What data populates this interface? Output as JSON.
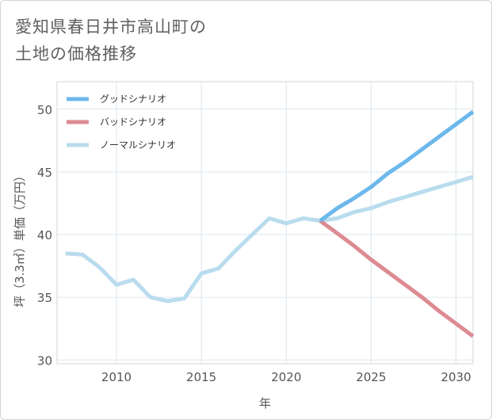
{
  "title_line1": "愛知県春日井市高山町の",
  "title_line2": "土地の価格推移",
  "chart_data": {
    "type": "line",
    "xlabel": "年",
    "ylabel": "坪（3.3㎡）単価（万円）",
    "xlim": [
      2006.5,
      2031
    ],
    "ylim": [
      29.7,
      52.2
    ],
    "xticks": [
      "2010",
      "2015",
      "2020",
      "2025",
      "2030"
    ],
    "yticks": [
      "30",
      "35",
      "40",
      "45",
      "50"
    ],
    "grid": true,
    "legend_position": "top-left",
    "series": [
      {
        "name": "グッドシナリオ",
        "color": "#6cb8ec",
        "x": [
          2022,
          2023,
          2024,
          2025,
          2026,
          2027,
          2028,
          2029,
          2030,
          2031
        ],
        "y": [
          41.1,
          42.1,
          42.9,
          43.8,
          44.9,
          45.8,
          46.8,
          47.8,
          48.8,
          49.8
        ]
      },
      {
        "name": "バッドシナリオ",
        "color": "#dd8a92",
        "x": [
          2022,
          2023,
          2024,
          2025,
          2026,
          2027,
          2028,
          2029,
          2030,
          2031
        ],
        "y": [
          41.1,
          40.1,
          39.1,
          38.0,
          37.0,
          36.0,
          35.0,
          33.9,
          32.9,
          31.9
        ]
      },
      {
        "name": "ノーマルシナリオ",
        "color": "#b9dcee",
        "x": [
          2007,
          2008,
          2009,
          2010,
          2011,
          2012,
          2013,
          2014,
          2015,
          2016,
          2017,
          2018,
          2019,
          2020,
          2021,
          2022,
          2023,
          2024,
          2025,
          2026,
          2027,
          2028,
          2029,
          2030,
          2031
        ],
        "y": [
          38.5,
          38.4,
          37.4,
          36.0,
          36.4,
          35.0,
          34.7,
          34.9,
          36.9,
          37.3,
          38.7,
          40.0,
          41.3,
          40.9,
          41.3,
          41.1,
          41.3,
          41.8,
          42.1,
          42.6,
          43.0,
          43.4,
          43.8,
          44.2,
          44.6
        ]
      }
    ]
  }
}
